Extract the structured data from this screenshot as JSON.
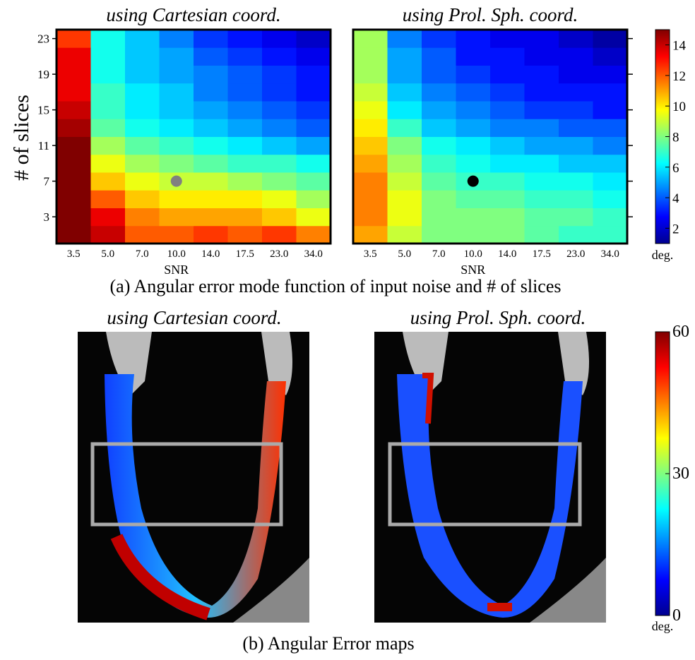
{
  "chart_data": [
    {
      "type": "heatmap",
      "title": "using Cartesian coord.",
      "xlabel": "SNR",
      "ylabel": "# of slices",
      "categories": [
        "3.5",
        "5.0",
        "7.0",
        "10.0",
        "14.0",
        "17.5",
        "23.0",
        "34.0"
      ],
      "y": [
        1,
        3,
        5,
        7,
        9,
        11,
        13,
        15,
        17,
        19,
        21,
        23
      ],
      "ylim": [
        0,
        24
      ],
      "yticks": [
        3,
        7,
        11,
        15,
        19,
        23
      ],
      "values": [
        [
          15,
          14,
          12,
          12,
          12.5,
          12,
          12.5,
          11.5
        ],
        [
          15,
          13.5,
          11.5,
          11,
          11,
          11,
          10.5,
          9.5
        ],
        [
          15,
          12,
          10.5,
          10,
          10,
          10,
          9.5,
          8.5
        ],
        [
          15,
          10.5,
          9.5,
          9,
          9,
          8.5,
          8,
          7.5
        ],
        [
          15,
          9.5,
          8.5,
          8,
          7.5,
          7,
          7,
          6.5
        ],
        [
          15,
          8.5,
          7.5,
          7,
          6.5,
          6,
          5.5,
          5
        ],
        [
          14.5,
          7.5,
          6.5,
          6,
          5.5,
          5,
          4.5,
          4
        ],
        [
          14,
          7,
          6,
          5.5,
          5,
          4.5,
          4,
          3.5
        ],
        [
          13.5,
          7,
          6,
          5.5,
          4.5,
          4,
          3.5,
          3
        ],
        [
          13.5,
          6.5,
          5.5,
          5,
          4.5,
          4,
          3.5,
          3
        ],
        [
          13.5,
          6.5,
          5.5,
          5,
          4,
          3.5,
          3,
          2.5
        ],
        [
          12.5,
          6.5,
          5.5,
          4.5,
          3.5,
          3,
          2.5,
          2
        ]
      ],
      "clim": [
        1,
        15
      ],
      "point": {
        "x": "10.0",
        "y": 7,
        "color": "#808080"
      }
    },
    {
      "type": "heatmap",
      "title": "using Prol. Sph. coord.",
      "xlabel": "SNR",
      "categories": [
        "3.5",
        "5.0",
        "7.0",
        "10.0",
        "14.0",
        "17.5",
        "23.0",
        "34.0"
      ],
      "y": [
        1,
        3,
        5,
        7,
        9,
        11,
        13,
        15,
        17,
        19,
        21,
        23
      ],
      "ylim": [
        0,
        24
      ],
      "yticks": [
        3,
        7,
        11,
        15,
        19,
        23
      ],
      "values": [
        [
          11,
          9,
          8,
          8,
          8,
          7.5,
          7,
          7
        ],
        [
          11.5,
          9.5,
          8,
          8,
          8,
          7.5,
          7.5,
          7
        ],
        [
          11.5,
          9.5,
          8,
          7.5,
          7.5,
          7,
          7,
          6.5
        ],
        [
          11.5,
          9,
          7.5,
          7,
          7,
          6.5,
          6.5,
          6
        ],
        [
          11,
          8.5,
          7,
          6.5,
          6,
          6,
          5.5,
          5.5
        ],
        [
          10.5,
          8,
          6.5,
          6,
          5.5,
          5,
          5,
          4.5
        ],
        [
          10,
          7,
          5.5,
          5,
          4.5,
          4.5,
          4,
          4
        ],
        [
          9.5,
          6,
          5,
          4.5,
          4,
          3.5,
          3.5,
          3
        ],
        [
          9,
          5.5,
          4.5,
          4,
          3.5,
          3,
          3,
          3
        ],
        [
          8.5,
          5,
          4,
          3.5,
          3,
          3,
          2.5,
          2.5
        ],
        [
          8.5,
          5,
          4,
          3,
          3,
          2.5,
          2.5,
          2
        ],
        [
          8.5,
          4.5,
          3.5,
          3,
          2.5,
          2.5,
          2,
          1.5
        ]
      ],
      "clim": [
        1,
        15
      ],
      "point": {
        "x": "10.0",
        "y": 7,
        "color": "#000000"
      },
      "colorbar": {
        "clim": [
          1,
          15
        ],
        "ticks": [
          2,
          4,
          6,
          8,
          10,
          12,
          14
        ],
        "label": "deg."
      }
    }
  ],
  "caption_a": "(a) Angular error mode function of input noise and # of slices",
  "maps": {
    "titles": [
      "using Cartesian coord.",
      "using Prol. Sph. coord."
    ],
    "colorbar": {
      "clim": [
        0,
        60
      ],
      "ticks": [
        0,
        30,
        60
      ],
      "label": "deg."
    },
    "caption": "(b) Angular Error maps"
  }
}
